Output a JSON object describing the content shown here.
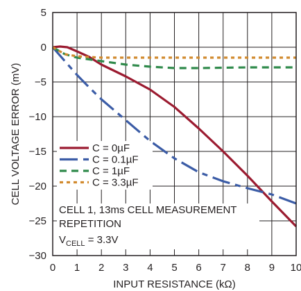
{
  "chart_data": {
    "type": "line",
    "xlabel": "INPUT RESISTANCE (kΩ)",
    "ylabel": "CELL VOLTAGE ERROR (mV)",
    "xlim": [
      0,
      10
    ],
    "ylim": [
      -30,
      5
    ],
    "xticks": [
      0,
      1,
      2,
      3,
      4,
      5,
      6,
      7,
      8,
      9,
      10
    ],
    "yticks": [
      5,
      0,
      -5,
      -10,
      -15,
      -20,
      -25,
      -30
    ],
    "xtick_labels": [
      "0",
      "1",
      "2",
      "3",
      "4",
      "5",
      "6",
      "7",
      "8",
      "9",
      "10"
    ],
    "ytick_labels": [
      "5",
      "0",
      "−5",
      "−10",
      "−15",
      "−20",
      "−25",
      "−30"
    ],
    "grid": true,
    "legend_placement": "bottom-left",
    "annotation": {
      "line1": "CELL 1, 13ms CELL MEASUREMENT",
      "line2": "REPETITION",
      "line3_prefix": "V",
      "line3_sub": "CELL",
      "line3_suffix": " = 3.3V"
    },
    "series": [
      {
        "name": "C = 0µF",
        "color": "#9b1b30",
        "dash": "solid",
        "x": [
          0,
          0.3,
          0.6,
          1.0,
          1.5,
          2.0,
          3.0,
          4.0,
          5.0,
          6.0,
          7.0,
          8.0,
          9.0,
          10.0
        ],
        "y": [
          0,
          0.1,
          0,
          -0.6,
          -1.4,
          -2.5,
          -4.2,
          -6.1,
          -8.6,
          -11.7,
          -15.0,
          -18.5,
          -22.2,
          -25.8
        ]
      },
      {
        "name": "C = 0.1µF",
        "color": "#3b5ca6",
        "dash": "longdash",
        "x": [
          0,
          0.5,
          1.0,
          1.5,
          2.0,
          3.0,
          4.0,
          5.0,
          6.0,
          7.0,
          8.0,
          9.0,
          10.0
        ],
        "y": [
          0,
          -2.0,
          -4.0,
          -5.8,
          -7.5,
          -10.5,
          -13.5,
          -16.0,
          -18.0,
          -19.3,
          -20.3,
          -21.2,
          -22.5
        ]
      },
      {
        "name": "C = 1µF",
        "color": "#2f8a4b",
        "dash": "dash",
        "x": [
          0,
          0.5,
          1.0,
          2.0,
          3.0,
          4.0,
          5.0,
          6.0,
          7.0,
          8.0,
          9.0,
          10.0
        ],
        "y": [
          0,
          -1.0,
          -1.5,
          -2.0,
          -2.5,
          -2.8,
          -3.0,
          -3.0,
          -2.95,
          -2.9,
          -2.9,
          -2.9
        ]
      },
      {
        "name": "C = 3.3µF",
        "color": "#d18a2e",
        "dash": "dot",
        "x": [
          0,
          0.5,
          1.0,
          2.0,
          3.0,
          4.0,
          5.0,
          6.0,
          7.0,
          8.0,
          9.0,
          10.0
        ],
        "y": [
          0,
          -1.0,
          -1.3,
          -1.5,
          -1.5,
          -1.5,
          -1.5,
          -1.5,
          -1.5,
          -1.5,
          -1.5,
          -1.5
        ]
      }
    ]
  }
}
